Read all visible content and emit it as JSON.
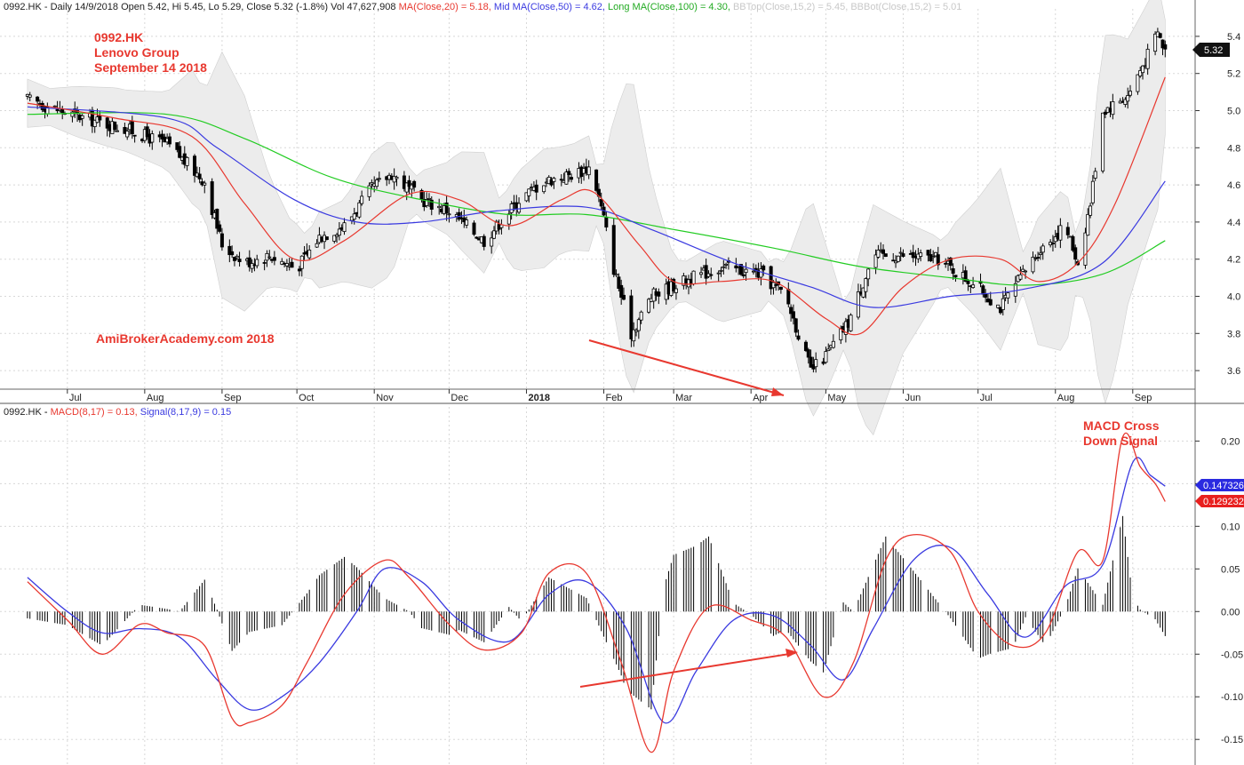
{
  "header": {
    "price": {
      "symbol": "0992.HK",
      "info": "- Daily 14/9/2018 Open 5.42, Hi 5.45, Lo 5.29, Close 5.32 (-1.8%) Vol 47,627,908",
      "ma20": "MA(Close,20) = 5.18,",
      "ma50": "Mid MA(Close,50) = 4.62,",
      "ma100": "Long MA(Close,100) = 4.30,",
      "bbtop": "BBTop(Close,15,2) = 5.45,",
      "bbbot": "BBBot(Close,15,2) = 5.01"
    },
    "macd": {
      "symbol": "0992.HK",
      "macd": "MACD(8,17) = 0.13,",
      "signal": "Signal(8,17,9) = 0.15"
    }
  },
  "annotations": {
    "title_lines": [
      "0992.HK",
      "Lenovo Group",
      "September 14 2018"
    ],
    "watermark": "AmiBrokerAcademy.com  2018",
    "macd_note_lines": [
      "MACD Cross",
      "Down Signal"
    ]
  },
  "colors": {
    "candle": "#000000",
    "ma20": "#e8382f",
    "ma50": "#3a3ae0",
    "ma100": "#22cc22",
    "bollinger_fill": "#ececec",
    "macd": "#e8382f",
    "signal": "#3a3ae0",
    "histogram": "#000000",
    "grid": "#d8d8d8",
    "arrow": "#e8382f"
  },
  "chart_data": [
    {
      "type": "candlestick",
      "panel": "price",
      "ylim": [
        3.5,
        5.5
      ],
      "yticks": [
        "3.6",
        "3.8",
        "4.0",
        "4.2",
        "4.4",
        "4.6",
        "4.8",
        "5.0",
        "5.2",
        "5.4"
      ],
      "xticks": [
        "Jul",
        "Aug",
        "Sep",
        "Oct",
        "Nov",
        "Dec",
        "2018",
        "Feb",
        "Mar",
        "Apr",
        "May",
        "Jun",
        "Jul",
        "Aug",
        "Sep"
      ],
      "price_path": [
        [
          "2017-06-15",
          5.06
        ],
        [
          "2017-07-05",
          4.97
        ],
        [
          "2017-07-25",
          4.9
        ],
        [
          "2017-08-10",
          4.82
        ],
        [
          "2017-08-25",
          4.62
        ],
        [
          "2017-09-01",
          4.28
        ],
        [
          "2017-09-10",
          4.18
        ],
        [
          "2017-09-20",
          4.22
        ],
        [
          "2017-10-01",
          4.15
        ],
        [
          "2017-10-10",
          4.32
        ],
        [
          "2017-10-20",
          4.38
        ],
        [
          "2017-10-31",
          4.58
        ],
        [
          "2017-11-08",
          4.66
        ],
        [
          "2017-11-20",
          4.52
        ],
        [
          "2017-12-01",
          4.46
        ],
        [
          "2017-12-15",
          4.3
        ],
        [
          "2017-12-29",
          4.52
        ],
        [
          "2018-01-08",
          4.62
        ],
        [
          "2018-01-20",
          4.66
        ],
        [
          "2018-01-27",
          4.7
        ],
        [
          "2018-02-01",
          4.42
        ],
        [
          "2018-02-05",
          4.15
        ],
        [
          "2018-02-12",
          3.8
        ],
        [
          "2018-02-20",
          4.0
        ],
        [
          "2018-03-01",
          4.06
        ],
        [
          "2018-03-20",
          4.16
        ],
        [
          "2018-04-05",
          4.12
        ],
        [
          "2018-04-15",
          4.0
        ],
        [
          "2018-04-25",
          3.6
        ],
        [
          "2018-05-01",
          3.68
        ],
        [
          "2018-05-10",
          3.86
        ],
        [
          "2018-05-20",
          4.22
        ],
        [
          "2018-06-01",
          4.22
        ],
        [
          "2018-06-15",
          4.2
        ],
        [
          "2018-06-30",
          4.06
        ],
        [
          "2018-07-10",
          3.94
        ],
        [
          "2018-07-25",
          4.24
        ],
        [
          "2018-08-05",
          4.38
        ],
        [
          "2018-08-10",
          4.18
        ],
        [
          "2018-08-15",
          4.5
        ],
        [
          "2018-08-20",
          5.0
        ],
        [
          "2018-08-30",
          5.08
        ],
        [
          "2018-09-07",
          5.3
        ],
        [
          "2018-09-11",
          5.42
        ],
        [
          "2018-09-14",
          5.32
        ]
      ],
      "series": [
        {
          "name": "MA(Close,20)",
          "points": [
            [
              "2017-06-15",
              5.04
            ],
            [
              "2017-07-20",
              4.96
            ],
            [
              "2017-08-20",
              4.86
            ],
            [
              "2017-09-10",
              4.5
            ],
            [
              "2017-09-30",
              4.2
            ],
            [
              "2017-10-20",
              4.3
            ],
            [
              "2017-11-15",
              4.55
            ],
            [
              "2017-12-05",
              4.52
            ],
            [
              "2017-12-25",
              4.38
            ],
            [
              "2018-01-15",
              4.52
            ],
            [
              "2018-01-28",
              4.56
            ],
            [
              "2018-02-15",
              4.28
            ],
            [
              "2018-03-01",
              4.08
            ],
            [
              "2018-03-20",
              4.08
            ],
            [
              "2018-04-10",
              4.08
            ],
            [
              "2018-05-01",
              3.88
            ],
            [
              "2018-05-15",
              3.8
            ],
            [
              "2018-06-01",
              4.05
            ],
            [
              "2018-06-20",
              4.2
            ],
            [
              "2018-07-10",
              4.2
            ],
            [
              "2018-07-25",
              4.08
            ],
            [
              "2018-08-10",
              4.18
            ],
            [
              "2018-08-25",
              4.5
            ],
            [
              "2018-09-14",
              5.18
            ]
          ]
        },
        {
          "name": "Mid MA(Close,50)",
          "points": [
            [
              "2017-06-15",
              5.02
            ],
            [
              "2017-08-10",
              4.96
            ],
            [
              "2017-08-30",
              4.8
            ],
            [
              "2017-09-30",
              4.52
            ],
            [
              "2017-10-25",
              4.4
            ],
            [
              "2017-11-20",
              4.4
            ],
            [
              "2017-12-20",
              4.46
            ],
            [
              "2018-01-25",
              4.48
            ],
            [
              "2018-02-20",
              4.36
            ],
            [
              "2018-03-25",
              4.18
            ],
            [
              "2018-04-25",
              4.05
            ],
            [
              "2018-05-20",
              3.94
            ],
            [
              "2018-06-20",
              4.0
            ],
            [
              "2018-07-20",
              4.04
            ],
            [
              "2018-08-20",
              4.18
            ],
            [
              "2018-09-14",
              4.62
            ]
          ]
        },
        {
          "name": "Long MA(Close,100)",
          "points": [
            [
              "2017-06-15",
              4.98
            ],
            [
              "2017-08-10",
              4.98
            ],
            [
              "2017-09-10",
              4.85
            ],
            [
              "2017-10-15",
              4.64
            ],
            [
              "2017-11-20",
              4.52
            ],
            [
              "2017-12-25",
              4.44
            ],
            [
              "2018-01-25",
              4.44
            ],
            [
              "2018-03-01",
              4.36
            ],
            [
              "2018-04-10",
              4.26
            ],
            [
              "2018-05-15",
              4.16
            ],
            [
              "2018-06-20",
              4.1
            ],
            [
              "2018-07-20",
              4.06
            ],
            [
              "2018-08-20",
              4.12
            ],
            [
              "2018-09-14",
              4.3
            ]
          ]
        }
      ]
    },
    {
      "type": "line",
      "panel": "macd",
      "ylim": [
        -0.18,
        0.24
      ],
      "yticks": [
        "-0.15",
        "-0.10",
        "-0.05",
        "0.00",
        "0.05",
        "0.10",
        "0.15",
        "0.20"
      ],
      "last_values": [
        "0.147326",
        "0.129232"
      ],
      "series": [
        {
          "name": "MACD(8,17)",
          "points": [
            [
              "2017-06-15",
              0.035
            ],
            [
              "2017-07-01",
              -0.01
            ],
            [
              "2017-07-15",
              -0.05
            ],
            [
              "2017-07-30",
              -0.015
            ],
            [
              "2017-08-10",
              -0.025
            ],
            [
              "2017-08-25",
              -0.04
            ],
            [
              "2017-09-05",
              -0.125
            ],
            [
              "2017-09-12",
              -0.13
            ],
            [
              "2017-09-25",
              -0.11
            ],
            [
              "2017-10-05",
              -0.06
            ],
            [
              "2017-10-20",
              0.02
            ],
            [
              "2017-11-05",
              0.06
            ],
            [
              "2017-11-15",
              0.04
            ],
            [
              "2017-12-01",
              -0.015
            ],
            [
              "2017-12-15",
              -0.045
            ],
            [
              "2017-12-30",
              -0.025
            ],
            [
              "2018-01-10",
              0.045
            ],
            [
              "2018-01-25",
              0.045
            ],
            [
              "2018-02-08",
              -0.06
            ],
            [
              "2018-02-20",
              -0.165
            ],
            [
              "2018-03-01",
              -0.07
            ],
            [
              "2018-03-15",
              0.005
            ],
            [
              "2018-04-01",
              -0.01
            ],
            [
              "2018-04-15",
              -0.03
            ],
            [
              "2018-04-30",
              -0.1
            ],
            [
              "2018-05-12",
              -0.06
            ],
            [
              "2018-05-25",
              0.06
            ],
            [
              "2018-06-05",
              0.09
            ],
            [
              "2018-06-20",
              0.07
            ],
            [
              "2018-07-01",
              0.0
            ],
            [
              "2018-07-15",
              -0.04
            ],
            [
              "2018-07-28",
              -0.025
            ],
            [
              "2018-08-10",
              0.07
            ],
            [
              "2018-08-20",
              0.06
            ],
            [
              "2018-08-28",
              0.205
            ],
            [
              "2018-09-04",
              0.17
            ],
            [
              "2018-09-10",
              0.15
            ],
            [
              "2018-09-14",
              0.129
            ]
          ]
        },
        {
          "name": "Signal(8,17,9)",
          "points": [
            [
              "2017-06-15",
              0.04
            ],
            [
              "2017-07-01",
              0.0
            ],
            [
              "2017-07-15",
              -0.025
            ],
            [
              "2017-07-30",
              -0.02
            ],
            [
              "2017-08-15",
              -0.03
            ],
            [
              "2017-08-30",
              -0.08
            ],
            [
              "2017-09-12",
              -0.115
            ],
            [
              "2017-09-25",
              -0.1
            ],
            [
              "2017-10-10",
              -0.06
            ],
            [
              "2017-10-25",
              0.0
            ],
            [
              "2017-11-05",
              0.05
            ],
            [
              "2017-11-20",
              0.035
            ],
            [
              "2017-12-05",
              -0.01
            ],
            [
              "2017-12-25",
              -0.035
            ],
            [
              "2018-01-10",
              0.02
            ],
            [
              "2018-01-25",
              0.035
            ],
            [
              "2018-02-10",
              -0.02
            ],
            [
              "2018-02-25",
              -0.13
            ],
            [
              "2018-03-10",
              -0.07
            ],
            [
              "2018-03-25",
              -0.01
            ],
            [
              "2018-04-10",
              -0.005
            ],
            [
              "2018-04-25",
              -0.04
            ],
            [
              "2018-05-08",
              -0.08
            ],
            [
              "2018-05-20",
              -0.02
            ],
            [
              "2018-06-05",
              0.06
            ],
            [
              "2018-06-20",
              0.075
            ],
            [
              "2018-07-05",
              0.02
            ],
            [
              "2018-07-20",
              -0.03
            ],
            [
              "2018-08-05",
              0.03
            ],
            [
              "2018-08-20",
              0.055
            ],
            [
              "2018-09-01",
              0.175
            ],
            [
              "2018-09-08",
              0.16
            ],
            [
              "2018-09-14",
              0.147
            ]
          ]
        }
      ]
    }
  ]
}
